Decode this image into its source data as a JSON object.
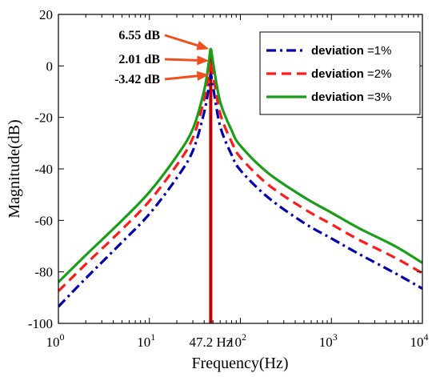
{
  "chart_data": {
    "type": "line",
    "xlabel": "Frequency(Hz)",
    "ylabel": "Magnitude(dB)",
    "xscale": "log",
    "xlim": [
      1,
      10000
    ],
    "ylim": [
      -100,
      20
    ],
    "x_ticks": [
      {
        "base": "10",
        "exp": "0",
        "value": 1
      },
      {
        "base": "10",
        "exp": "1",
        "value": 10
      },
      {
        "base": "10",
        "exp": "2",
        "value": 100
      },
      {
        "base": "10",
        "exp": "3",
        "value": 1000
      },
      {
        "base": "10",
        "exp": "4",
        "value": 10000
      }
    ],
    "y_ticks": [
      "20",
      "0",
      "-20",
      "-40",
      "-60",
      "-80",
      "-100"
    ],
    "grid": false,
    "legend_position": "top-right",
    "resonance": {
      "frequency": 47.2,
      "label": "47.2 Hz",
      "color": "#c00000"
    },
    "series": [
      {
        "name": "deviation",
        "eq": "=1%",
        "color": "#0000b3",
        "dash": "dashdot",
        "x": [
          1,
          2,
          5,
          10,
          20,
          30,
          40,
          45,
          47.2,
          50,
          60,
          80,
          100,
          200,
          500,
          1000,
          2000,
          5000,
          10000
        ],
        "y": [
          -93.5,
          -82.5,
          -68.5,
          -57.5,
          -43.5,
          -33,
          -18,
          -8,
          -3.42,
          -8,
          -23.5,
          -34.5,
          -40.5,
          -51,
          -61,
          -67,
          -73,
          -80.5,
          -86.5
        ]
      },
      {
        "name": "deviation",
        "eq": "=2%",
        "color": "#ff1a1a",
        "dash": "dashed",
        "x": [
          1,
          2,
          5,
          10,
          20,
          30,
          40,
          45,
          47.2,
          50,
          60,
          80,
          100,
          200,
          500,
          1000,
          2000,
          5000,
          10000
        ],
        "y": [
          -87.5,
          -77,
          -63.5,
          -52.5,
          -38.5,
          -28,
          -13,
          -3,
          2.01,
          -3,
          -18.5,
          -29.5,
          -35.5,
          -46,
          -55.5,
          -61.5,
          -67.5,
          -74.5,
          -80.5
        ]
      },
      {
        "name": "deviation",
        "eq": "=3%",
        "color": "#1a9e1a",
        "dash": "solid",
        "x": [
          1,
          2,
          5,
          10,
          20,
          30,
          40,
          45,
          47.2,
          50,
          60,
          80,
          100,
          200,
          500,
          1000,
          2000,
          5000,
          10000
        ],
        "y": [
          -84,
          -73.5,
          -60,
          -49,
          -35,
          -24.5,
          -9.5,
          1.5,
          6.55,
          1.5,
          -14,
          -25,
          -31,
          -41.5,
          -51,
          -57,
          -63,
          -70,
          -76.5
        ]
      }
    ],
    "annotations": [
      {
        "label": "6.55 dB",
        "value": 6.55
      },
      {
        "label": "2.01 dB",
        "value": 2.01
      },
      {
        "label": "-3.42 dB",
        "value": -3.42
      }
    ],
    "annotation_arrow_color": "#f05020"
  }
}
